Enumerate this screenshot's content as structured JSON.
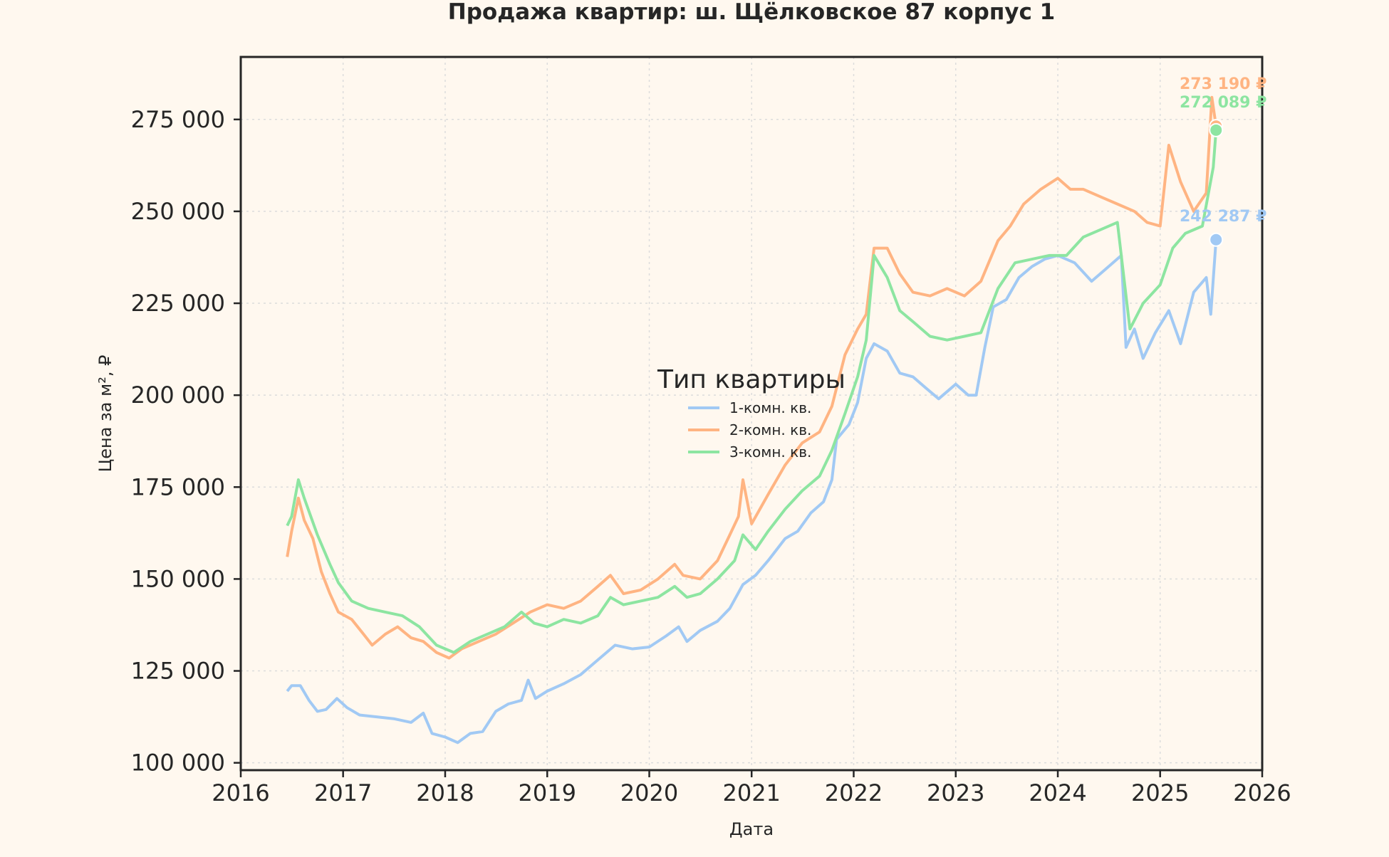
{
  "chart_data": {
    "type": "line",
    "title": "Продажа квартир: ш. Щёлковское 87 корпус 1",
    "xlabel": "Дата",
    "ylabel": "Цена за м², ₽",
    "xlim": [
      "2016-01-01",
      "2026-01-01"
    ],
    "ylim": [
      98000,
      292000
    ],
    "x_ticks": [
      "2016",
      "2017",
      "2018",
      "2019",
      "2020",
      "2021",
      "2022",
      "2023",
      "2024",
      "2025",
      "2026"
    ],
    "y_ticks": [
      "100 000",
      "125 000",
      "150 000",
      "175 000",
      "200 000",
      "225 000",
      "250 000",
      "275 000"
    ],
    "grid": true,
    "legend": {
      "title": "Тип квартиры",
      "placement": "center",
      "entries": [
        "1-комн. кв.",
        "2-комн. кв.",
        "3-комн. кв."
      ]
    },
    "series": [
      {
        "name": "1-комн. кв.",
        "color": "#a1c9f4",
        "last_label": "242 287 ₽",
        "points": [
          [
            "2016-06-15",
            119500
          ],
          [
            "2016-07-01",
            121000
          ],
          [
            "2016-08-01",
            121000
          ],
          [
            "2016-09-01",
            117000
          ],
          [
            "2016-10-01",
            114000
          ],
          [
            "2016-11-01",
            114500
          ],
          [
            "2016-12-10",
            117500
          ],
          [
            "2017-01-15",
            115000
          ],
          [
            "2017-03-01",
            113000
          ],
          [
            "2017-05-01",
            112500
          ],
          [
            "2017-07-01",
            112000
          ],
          [
            "2017-09-01",
            111000
          ],
          [
            "2017-10-15",
            113500
          ],
          [
            "2017-11-15",
            108000
          ],
          [
            "2018-01-01",
            107000
          ],
          [
            "2018-02-15",
            105500
          ],
          [
            "2018-04-01",
            108000
          ],
          [
            "2018-05-15",
            108500
          ],
          [
            "2018-07-01",
            114000
          ],
          [
            "2018-08-15",
            116000
          ],
          [
            "2018-10-01",
            117000
          ],
          [
            "2018-10-25",
            122500
          ],
          [
            "2018-11-20",
            117500
          ],
          [
            "2019-01-01",
            119500
          ],
          [
            "2019-03-01",
            121500
          ],
          [
            "2019-05-01",
            124000
          ],
          [
            "2019-07-01",
            128000
          ],
          [
            "2019-09-01",
            132000
          ],
          [
            "2019-11-01",
            131000
          ],
          [
            "2020-01-01",
            131500
          ],
          [
            "2020-03-01",
            134500
          ],
          [
            "2020-04-15",
            137000
          ],
          [
            "2020-05-15",
            133000
          ],
          [
            "2020-07-01",
            136000
          ],
          [
            "2020-09-01",
            138500
          ],
          [
            "2020-10-15",
            142000
          ],
          [
            "2020-12-01",
            148500
          ],
          [
            "2021-01-15",
            151000
          ],
          [
            "2021-03-01",
            155000
          ],
          [
            "2021-05-01",
            161000
          ],
          [
            "2021-06-15",
            163000
          ],
          [
            "2021-08-01",
            168000
          ],
          [
            "2021-09-15",
            171000
          ],
          [
            "2021-10-15",
            177000
          ],
          [
            "2021-11-01",
            188000
          ],
          [
            "2021-12-15",
            192000
          ],
          [
            "2022-01-15",
            198000
          ],
          [
            "2022-02-15",
            210000
          ],
          [
            "2022-03-15",
            214000
          ],
          [
            "2022-05-01",
            212000
          ],
          [
            "2022-06-15",
            206000
          ],
          [
            "2022-08-01",
            205000
          ],
          [
            "2022-09-15",
            202000
          ],
          [
            "2022-11-01",
            199000
          ],
          [
            "2023-01-01",
            203000
          ],
          [
            "2023-02-15",
            200000
          ],
          [
            "2023-03-15",
            200000
          ],
          [
            "2023-04-15",
            213000
          ],
          [
            "2023-05-15",
            224000
          ],
          [
            "2023-07-01",
            226000
          ],
          [
            "2023-08-15",
            232000
          ],
          [
            "2023-10-01",
            235000
          ],
          [
            "2023-11-15",
            237000
          ],
          [
            "2024-01-01",
            238000
          ],
          [
            "2024-03-01",
            236000
          ],
          [
            "2024-05-01",
            231000
          ],
          [
            "2024-07-01",
            235000
          ],
          [
            "2024-08-15",
            238000
          ],
          [
            "2024-09-01",
            213000
          ],
          [
            "2024-10-01",
            218000
          ],
          [
            "2024-11-01",
            210000
          ],
          [
            "2024-12-15",
            217000
          ],
          [
            "2025-02-01",
            223000
          ],
          [
            "2025-03-15",
            214000
          ],
          [
            "2025-05-01",
            228000
          ],
          [
            "2025-06-15",
            232000
          ],
          [
            "2025-07-01",
            222000
          ],
          [
            "2025-07-20",
            242287
          ]
        ]
      },
      {
        "name": "2-комн. кв.",
        "color": "#ffb482",
        "last_label": "273 190 ₽",
        "points": [
          [
            "2016-06-15",
            156000
          ],
          [
            "2016-07-01",
            163000
          ],
          [
            "2016-07-25",
            172000
          ],
          [
            "2016-08-15",
            166000
          ],
          [
            "2016-09-15",
            161000
          ],
          [
            "2016-10-15",
            152000
          ],
          [
            "2016-11-15",
            146000
          ],
          [
            "2016-12-15",
            141000
          ],
          [
            "2017-02-01",
            139000
          ],
          [
            "2017-03-15",
            135000
          ],
          [
            "2017-04-15",
            132000
          ],
          [
            "2017-06-01",
            135000
          ],
          [
            "2017-07-15",
            137000
          ],
          [
            "2017-09-01",
            134000
          ],
          [
            "2017-10-15",
            133000
          ],
          [
            "2017-12-01",
            130000
          ],
          [
            "2018-01-15",
            128500
          ],
          [
            "2018-03-01",
            131000
          ],
          [
            "2018-05-01",
            133000
          ],
          [
            "2018-07-01",
            135000
          ],
          [
            "2018-09-01",
            138000
          ],
          [
            "2018-11-01",
            141000
          ],
          [
            "2019-01-01",
            143000
          ],
          [
            "2019-03-01",
            142000
          ],
          [
            "2019-05-01",
            144000
          ],
          [
            "2019-07-01",
            148000
          ],
          [
            "2019-08-15",
            151000
          ],
          [
            "2019-10-01",
            146000
          ],
          [
            "2019-12-01",
            147000
          ],
          [
            "2020-02-01",
            150000
          ],
          [
            "2020-04-01",
            154000
          ],
          [
            "2020-05-01",
            151000
          ],
          [
            "2020-07-01",
            150000
          ],
          [
            "2020-09-01",
            155000
          ],
          [
            "2020-10-15",
            162000
          ],
          [
            "2020-11-15",
            167000
          ],
          [
            "2020-12-01",
            177000
          ],
          [
            "2021-01-01",
            165000
          ],
          [
            "2021-03-01",
            173000
          ],
          [
            "2021-05-01",
            181000
          ],
          [
            "2021-07-01",
            187000
          ],
          [
            "2021-09-01",
            190000
          ],
          [
            "2021-10-15",
            197000
          ],
          [
            "2021-12-01",
            211000
          ],
          [
            "2022-01-15",
            218000
          ],
          [
            "2022-02-15",
            222000
          ],
          [
            "2022-03-15",
            240000
          ],
          [
            "2022-05-01",
            240000
          ],
          [
            "2022-06-15",
            233000
          ],
          [
            "2022-08-01",
            228000
          ],
          [
            "2022-10-01",
            227000
          ],
          [
            "2022-12-01",
            229000
          ],
          [
            "2023-02-01",
            227000
          ],
          [
            "2023-04-01",
            231000
          ],
          [
            "2023-06-01",
            242000
          ],
          [
            "2023-07-15",
            246000
          ],
          [
            "2023-09-01",
            252000
          ],
          [
            "2023-11-01",
            256000
          ],
          [
            "2024-01-01",
            259000
          ],
          [
            "2024-02-15",
            256000
          ],
          [
            "2024-04-01",
            256000
          ],
          [
            "2024-06-01",
            254000
          ],
          [
            "2024-08-01",
            252000
          ],
          [
            "2024-10-01",
            250000
          ],
          [
            "2024-11-15",
            247000
          ],
          [
            "2025-01-01",
            246000
          ],
          [
            "2025-02-01",
            268000
          ],
          [
            "2025-03-15",
            258000
          ],
          [
            "2025-05-01",
            250000
          ],
          [
            "2025-06-15",
            255000
          ],
          [
            "2025-07-05",
            281000
          ],
          [
            "2025-07-20",
            273190
          ]
        ]
      },
      {
        "name": "3-комн. кв.",
        "color": "#8de5a1",
        "last_label": "272 089 ₽",
        "points": [
          [
            "2016-06-15",
            164500
          ],
          [
            "2016-07-01",
            167000
          ],
          [
            "2016-07-25",
            177000
          ],
          [
            "2016-08-15",
            172000
          ],
          [
            "2016-10-01",
            162000
          ],
          [
            "2016-11-15",
            154000
          ],
          [
            "2016-12-15",
            149000
          ],
          [
            "2017-02-01",
            144000
          ],
          [
            "2017-04-01",
            142000
          ],
          [
            "2017-06-01",
            141000
          ],
          [
            "2017-08-01",
            140000
          ],
          [
            "2017-10-01",
            137000
          ],
          [
            "2017-12-01",
            132000
          ],
          [
            "2018-02-01",
            130000
          ],
          [
            "2018-04-01",
            133000
          ],
          [
            "2018-06-01",
            135000
          ],
          [
            "2018-08-01",
            137000
          ],
          [
            "2018-10-01",
            141000
          ],
          [
            "2018-11-15",
            138000
          ],
          [
            "2019-01-01",
            137000
          ],
          [
            "2019-03-01",
            139000
          ],
          [
            "2019-05-01",
            138000
          ],
          [
            "2019-07-01",
            140000
          ],
          [
            "2019-08-15",
            145000
          ],
          [
            "2019-10-01",
            143000
          ],
          [
            "2019-12-01",
            144000
          ],
          [
            "2020-02-01",
            145000
          ],
          [
            "2020-04-01",
            148000
          ],
          [
            "2020-05-15",
            145000
          ],
          [
            "2020-07-01",
            146000
          ],
          [
            "2020-09-01",
            150000
          ],
          [
            "2020-11-01",
            155000
          ],
          [
            "2020-12-01",
            162000
          ],
          [
            "2021-01-15",
            158000
          ],
          [
            "2021-03-01",
            163000
          ],
          [
            "2021-05-01",
            169000
          ],
          [
            "2021-07-01",
            174000
          ],
          [
            "2021-09-01",
            178000
          ],
          [
            "2021-10-15",
            185000
          ],
          [
            "2021-12-01",
            195000
          ],
          [
            "2022-01-15",
            205000
          ],
          [
            "2022-02-15",
            215000
          ],
          [
            "2022-03-15",
            238000
          ],
          [
            "2022-05-01",
            232000
          ],
          [
            "2022-06-15",
            223000
          ],
          [
            "2022-08-01",
            220000
          ],
          [
            "2022-10-01",
            216000
          ],
          [
            "2022-12-01",
            215000
          ],
          [
            "2023-02-01",
            216000
          ],
          [
            "2023-04-01",
            217000
          ],
          [
            "2023-06-01",
            229000
          ],
          [
            "2023-08-01",
            236000
          ],
          [
            "2023-10-01",
            237000
          ],
          [
            "2023-12-01",
            238000
          ],
          [
            "2024-02-01",
            238000
          ],
          [
            "2024-04-01",
            243000
          ],
          [
            "2024-06-01",
            245000
          ],
          [
            "2024-08-01",
            247000
          ],
          [
            "2024-09-15",
            218000
          ],
          [
            "2024-11-01",
            225000
          ],
          [
            "2025-01-01",
            230000
          ],
          [
            "2025-02-15",
            240000
          ],
          [
            "2025-04-01",
            244000
          ],
          [
            "2025-06-01",
            246000
          ],
          [
            "2025-07-10",
            262000
          ],
          [
            "2025-07-20",
            272089
          ]
        ]
      }
    ]
  }
}
